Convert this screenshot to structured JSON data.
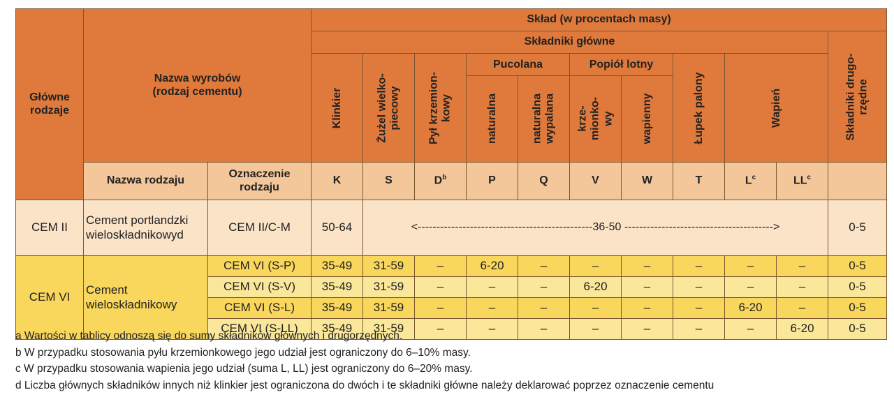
{
  "header": {
    "glowne_rodzaje": "Główne rodzaje",
    "nazwa_wyrobow": "Nazwa wyrobów",
    "rodzaj_cementu": "(rodzaj cementu)",
    "sklad": "Skład (w procentach masy)",
    "skladniki_glowne": "Składniki główne",
    "pucolana": "Pucolana",
    "popiol_lotny": "Popiół lotny",
    "wapien": "Wapień",
    "skladniki_drugorzedne": "Składniki drugo-\nrzędne",
    "nazwa_rodzaju": "Nazwa rodzaju",
    "oznaczenie_rodzaju": "Oznaczenie rodzaju",
    "columns": {
      "klinkier": "Klinkier",
      "zuzel": "Żużel wielko-\npiecowy",
      "pyl": "Pył krzemion-\nkowy",
      "naturalna": "naturalna",
      "naturalna_wypalana": "naturalna\nwypalana",
      "krzemionkowy": "krze-\nmionko-\nwy",
      "wapienny": "wapienny",
      "lupek": "Łupek palony"
    },
    "codes": {
      "K": "K",
      "S": "S",
      "D": "D",
      "D_sup": "b",
      "P": "P",
      "Q": "Q",
      "V": "V",
      "W": "W",
      "T": "T",
      "L": "L",
      "L_sup": "c",
      "LL": "LL",
      "LL_sup": "c"
    }
  },
  "rows": {
    "cem2": {
      "group": "CEM II",
      "name": "Cement portlandzki wieloskładnikowyd",
      "code": "CEM II/C-M",
      "klinkier": "50-64",
      "range": "<-----------------------------------------------36-50 ---------------------------------------->",
      "minor": "0-5"
    },
    "cem6": {
      "group": "CEM VI",
      "name": "Cement wieloskładnikowy",
      "items": [
        {
          "code": "CEM VI (S-P)",
          "K": "35-49",
          "S": "31-59",
          "D": "–",
          "P": "6-20",
          "Q": "–",
          "V": "–",
          "W": "–",
          "T": "–",
          "L": "–",
          "LL": "–",
          "minor": "0-5"
        },
        {
          "code": "CEM VI (S-V)",
          "K": "35-49",
          "S": "31-59",
          "D": "–",
          "P": "–",
          "Q": "–",
          "V": "6-20",
          "W": "–",
          "T": "–",
          "L": "–",
          "LL": "–",
          "minor": "0-5"
        },
        {
          "code": "CEM VI (S-L)",
          "K": "35-49",
          "S": "31-59",
          "D": "–",
          "P": "–",
          "Q": "–",
          "V": "–",
          "W": "–",
          "T": "–",
          "L": "6-20",
          "LL": "–",
          "minor": "0-5"
        },
        {
          "code": "CEM VI (S-LL)",
          "K": "35-49",
          "S": "31-59",
          "D": "–",
          "P": "–",
          "Q": "–",
          "V": "–",
          "W": "–",
          "T": "–",
          "L": "–",
          "LL": "6-20",
          "minor": "0-5"
        }
      ]
    }
  },
  "notes": [
    "a Wartości w tablicy odnoszą się do sumy składników głównych i drugorzędnych.",
    "b W przypadku stosowania pyłu krzemionkowego jego udział jest ograniczony do 6–10% masy.",
    "c W przypadku stosowania wapienia jego udział (suma L, LL) jest ograniczony do 6–20% masy.",
    "d Liczba głównych składników innych niż klinkier jest ograniczona do dwóch i te składniki główne należy deklarować poprzez oznaczenie cementu"
  ],
  "colors": {
    "header_dark": "#e07a3c",
    "header_light": "#f4c79a",
    "cem2_row": "#fbe3c8",
    "cem6_row": "#f9d65c",
    "cem6_row_alt": "#fbe79a"
  }
}
